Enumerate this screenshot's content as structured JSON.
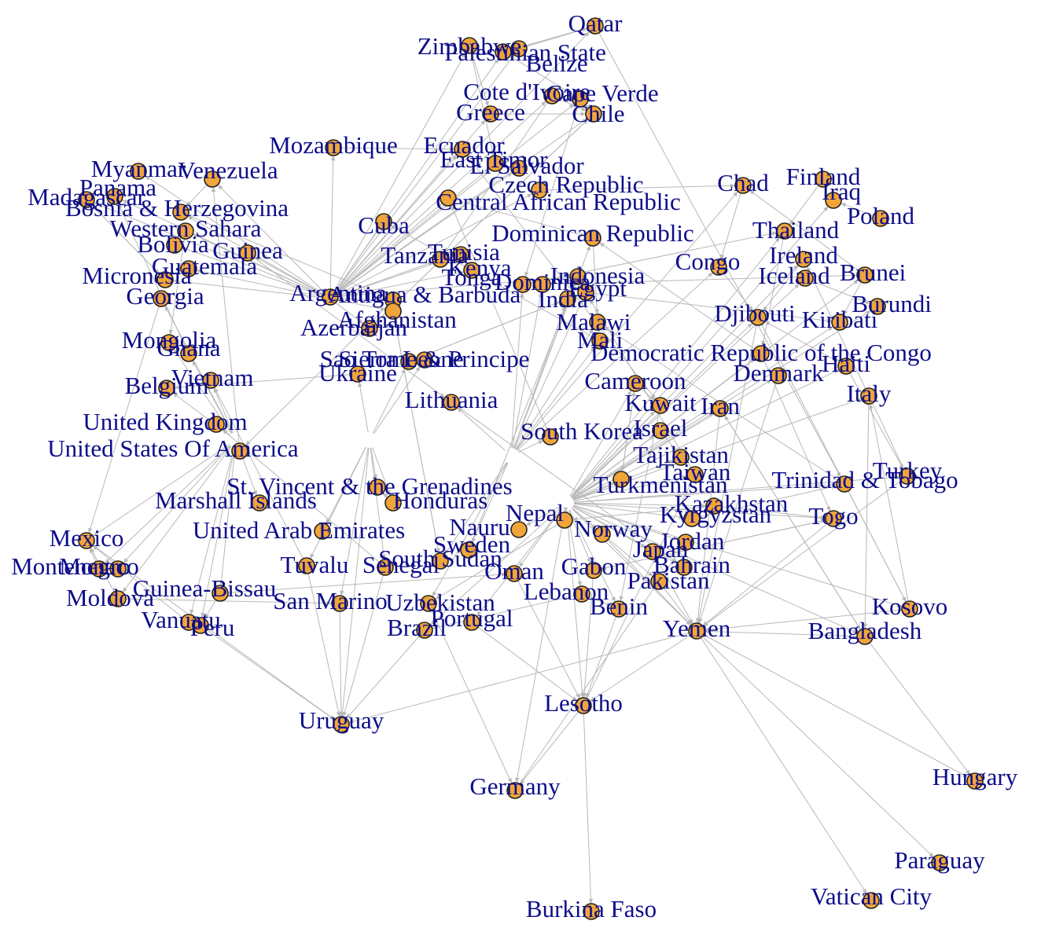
{
  "colors": {
    "node_fill": "#f0a53a",
    "node_stroke": "#222222",
    "label": "#0d0d8a",
    "edge": "#b8b8b8"
  },
  "nodes": [
    {
      "id": "qatar",
      "label": "Qatar"
    },
    {
      "id": "zimbabwe",
      "label": "Zimbabwe"
    },
    {
      "id": "palestinian-state",
      "label": "Palestinian State"
    },
    {
      "id": "belize",
      "label": "Belize"
    },
    {
      "id": "cote-divoire",
      "label": "Cote d'Ivoire"
    },
    {
      "id": "cape-verde",
      "label": "Cape Verde"
    },
    {
      "id": "greece",
      "label": "Greece"
    },
    {
      "id": "chile",
      "label": "Chile"
    },
    {
      "id": "mozambique",
      "label": "Mozambique"
    },
    {
      "id": "ecuador",
      "label": "Ecuador"
    },
    {
      "id": "east-timor",
      "label": "East Timor"
    },
    {
      "id": "el-salvador",
      "label": "El Salvador"
    },
    {
      "id": "czech-republic",
      "label": "Czech Republic"
    },
    {
      "id": "central-african-republic",
      "label": "Central African Republic"
    },
    {
      "id": "cuba",
      "label": "Cuba"
    },
    {
      "id": "chad",
      "label": "Chad"
    },
    {
      "id": "finland",
      "label": "Finland"
    },
    {
      "id": "iraq",
      "label": "Iraq"
    },
    {
      "id": "poland",
      "label": "Poland"
    },
    {
      "id": "myanmar",
      "label": "Myanmar"
    },
    {
      "id": "venezuela",
      "label": "Venezuela"
    },
    {
      "id": "panama",
      "label": "Panama"
    },
    {
      "id": "madagascar",
      "label": "Madagascar"
    },
    {
      "id": "bosnia",
      "label": "Bosnia & Herzegovina"
    },
    {
      "id": "western-sahara",
      "label": "Western Sahara"
    },
    {
      "id": "bolivia",
      "label": "Bolivia"
    },
    {
      "id": "guinea",
      "label": "Guinea"
    },
    {
      "id": "guatemala",
      "label": "Guatemala"
    },
    {
      "id": "dominican-republic",
      "label": "Dominican Republic"
    },
    {
      "id": "thailand",
      "label": "Thailand"
    },
    {
      "id": "tunisia",
      "label": "Tunisia"
    },
    {
      "id": "tanzania",
      "label": "Tanzania"
    },
    {
      "id": "kenya",
      "label": "Kenya"
    },
    {
      "id": "congo",
      "label": "Congo"
    },
    {
      "id": "ireland",
      "label": "Ireland"
    },
    {
      "id": "iceland",
      "label": "Iceland"
    },
    {
      "id": "brunei",
      "label": "Brunei"
    },
    {
      "id": "micronesia",
      "label": "Micronesia"
    },
    {
      "id": "tonga",
      "label": "Tonga"
    },
    {
      "id": "dominica",
      "label": "Dominica"
    },
    {
      "id": "indonesia",
      "label": "Indonesia"
    },
    {
      "id": "egypt",
      "label": "Egypt"
    },
    {
      "id": "india",
      "label": "India"
    },
    {
      "id": "argentina",
      "label": "Argentina"
    },
    {
      "id": "antigua-barbuda",
      "label": "Antigua & Barbuda"
    },
    {
      "id": "burundi",
      "label": "Burundi"
    },
    {
      "id": "georgia",
      "label": "Georgia"
    },
    {
      "id": "afghanistan",
      "label": "Afghanistan"
    },
    {
      "id": "malawi",
      "label": "Malawi"
    },
    {
      "id": "djibouti",
      "label": "Djibouti"
    },
    {
      "id": "kiribati",
      "label": "Kiribati"
    },
    {
      "id": "mongolia",
      "label": "Mongolia"
    },
    {
      "id": "azerbaijan",
      "label": "Azerbaijan"
    },
    {
      "id": "mali",
      "label": "Mali"
    },
    {
      "id": "ghana",
      "label": "Ghana"
    },
    {
      "id": "democratic-republic-congo",
      "label": "Democratic Republic of the Congo"
    },
    {
      "id": "sao-tome",
      "label": "Sao Tome & Principe"
    },
    {
      "id": "sierra-leone",
      "label": "Sierra Leone"
    },
    {
      "id": "haiti",
      "label": "Haiti"
    },
    {
      "id": "denmark",
      "label": "Denmark"
    },
    {
      "id": "ukraine",
      "label": "Ukraine"
    },
    {
      "id": "vietnam",
      "label": "Vietnam"
    },
    {
      "id": "cameroon",
      "label": "Cameroon"
    },
    {
      "id": "belgium",
      "label": "Belgium"
    },
    {
      "id": "italy",
      "label": "Italy"
    },
    {
      "id": "lithuania",
      "label": "Lithuania"
    },
    {
      "id": "kuwait",
      "label": "Kuwait"
    },
    {
      "id": "iran",
      "label": "Iran"
    },
    {
      "id": "united-kingdom",
      "label": "United Kingdom"
    },
    {
      "id": "israel",
      "label": "Israel"
    },
    {
      "id": "south-korea",
      "label": "South Korea"
    },
    {
      "id": "united-states",
      "label": "United States Of America"
    },
    {
      "id": "tajikistan",
      "label": "Tajikistan"
    },
    {
      "id": "turkey",
      "label": "Turkey"
    },
    {
      "id": "taiwan",
      "label": "Taiwan"
    },
    {
      "id": "trinidad-tobago",
      "label": "Trinidad & Tobago"
    },
    {
      "id": "st-vincent",
      "label": "St. Vincent & the Grenadines"
    },
    {
      "id": "turkmenistan",
      "label": "Turkmenistan"
    },
    {
      "id": "marshall-islands",
      "label": "Marshall Islands"
    },
    {
      "id": "honduras",
      "label": "Honduras"
    },
    {
      "id": "kazakhstan",
      "label": "Kazakhstan"
    },
    {
      "id": "kyrgyzstan",
      "label": "Kyrgyzstan"
    },
    {
      "id": "togo",
      "label": "Togo"
    },
    {
      "id": "nepal",
      "label": "Nepal"
    },
    {
      "id": "norway",
      "label": "Norway"
    },
    {
      "id": "mexico",
      "label": "Mexico"
    },
    {
      "id": "united-arab-emirates",
      "label": "United Arab Emirates"
    },
    {
      "id": "nauru",
      "label": "Nauru"
    },
    {
      "id": "jordan",
      "label": "Jordan"
    },
    {
      "id": "monaco",
      "label": "Monaco"
    },
    {
      "id": "montenegro",
      "label": "Montenegro"
    },
    {
      "id": "sweden",
      "label": "Sweden"
    },
    {
      "id": "south-sudan",
      "label": "South Sudan"
    },
    {
      "id": "japan",
      "label": "Japan"
    },
    {
      "id": "tuvalu",
      "label": "Tuvalu"
    },
    {
      "id": "senegal",
      "label": "Senegal"
    },
    {
      "id": "oman",
      "label": "Oman"
    },
    {
      "id": "gabon",
      "label": "Gabon"
    },
    {
      "id": "bahrain",
      "label": "Bahrain"
    },
    {
      "id": "guinea-bissau",
      "label": "Guinea-Bissau"
    },
    {
      "id": "moldova",
      "label": "Moldova"
    },
    {
      "id": "lebanon",
      "label": "Lebanon"
    },
    {
      "id": "pakistan",
      "label": "Pakistan"
    },
    {
      "id": "san-marino",
      "label": "San Marino"
    },
    {
      "id": "uzbekistan",
      "label": "Uzbekistan"
    },
    {
      "id": "benin",
      "label": "Benin"
    },
    {
      "id": "kosovo",
      "label": "Kosovo"
    },
    {
      "id": "vanuatu",
      "label": "Vanuatu"
    },
    {
      "id": "peru",
      "label": "Peru"
    },
    {
      "id": "portugal",
      "label": "Portugal"
    },
    {
      "id": "brazil",
      "label": "Brazil"
    },
    {
      "id": "yemen",
      "label": "Yemen"
    },
    {
      "id": "bangladesh",
      "label": "Bangladesh"
    },
    {
      "id": "lesotho",
      "label": "Lesotho"
    },
    {
      "id": "uruguay",
      "label": "Uruguay"
    },
    {
      "id": "germany",
      "label": "Germany"
    },
    {
      "id": "hungary",
      "label": "Hungary"
    },
    {
      "id": "paraguay",
      "label": "Paraguay"
    },
    {
      "id": "vatican-city",
      "label": "Vatican City"
    },
    {
      "id": "burkina-faso",
      "label": "Burkina Faso"
    }
  ]
}
